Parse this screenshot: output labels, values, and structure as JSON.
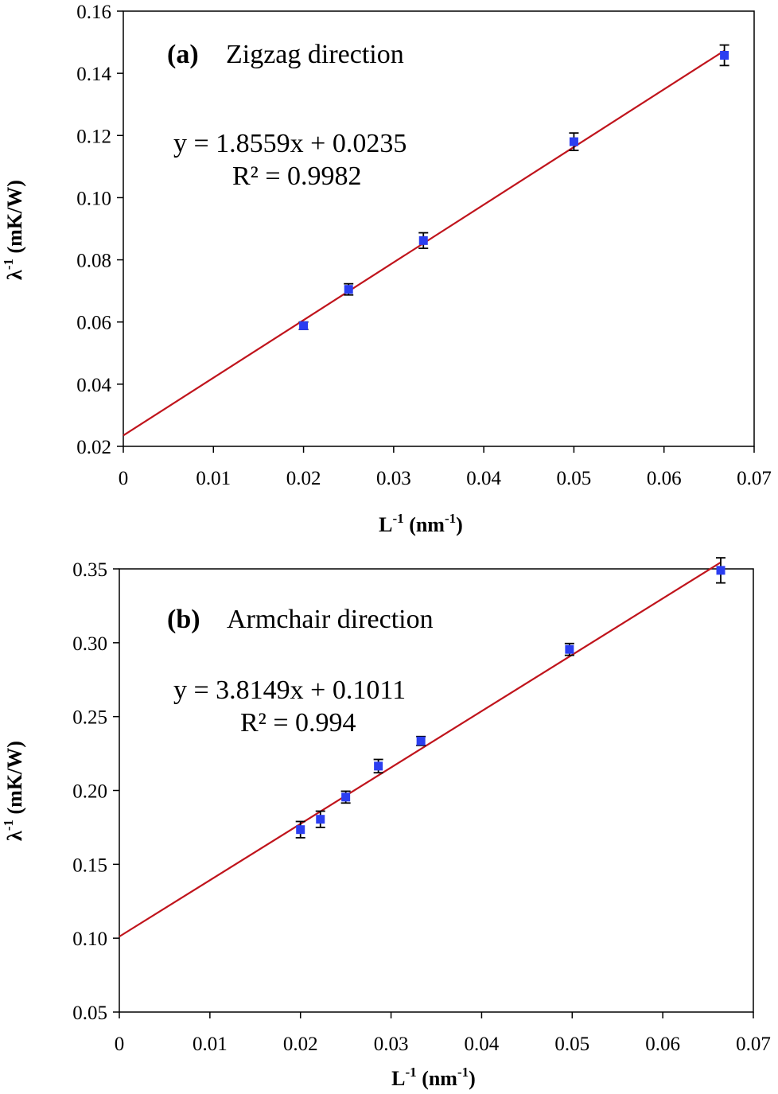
{
  "chart_data": [
    {
      "type": "scatter",
      "panel_label": "(a)",
      "title": "Zigzag direction",
      "xlabel": {
        "base": "L",
        "sup": "-1",
        "unit_open": " (nm",
        "unit_sup": "-1",
        "unit_close": ")"
      },
      "ylabel": {
        "base": "λ",
        "sup": "-1",
        "rest": " (mK/W)"
      },
      "xlim": [
        0,
        0.07
      ],
      "ylim": [
        0.02,
        0.16
      ],
      "xticks": [
        0,
        0.01,
        0.02,
        0.03,
        0.04,
        0.05,
        0.06,
        0.07
      ],
      "xtick_labels": [
        "0",
        "0.01",
        "0.02",
        "0.03",
        "0.04",
        "0.05",
        "0.06",
        "0.07"
      ],
      "yticks": [
        0.02,
        0.04,
        0.06,
        0.08,
        0.1,
        0.12,
        0.14,
        0.16
      ],
      "ytick_labels": [
        "0.02",
        "0.04",
        "0.06",
        "0.08",
        "0.10",
        "0.12",
        "0.14",
        "0.16"
      ],
      "grid": false,
      "series": [
        {
          "x": [
            0.02,
            0.025,
            0.0333,
            0.05,
            0.0667
          ],
          "y": [
            0.0588,
            0.0705,
            0.0862,
            0.118,
            0.1458
          ],
          "yerr": [
            0.0012,
            0.0018,
            0.0025,
            0.0028,
            0.0033
          ],
          "color": "#2b3ef0"
        }
      ],
      "trendline": {
        "slope": 1.8559,
        "intercept": 0.0235,
        "x_range": [
          0,
          0.0667
        ],
        "color": "#c0141c",
        "equation": "y = 1.8559x + 0.0235",
        "r2": "R² = 0.9982"
      }
    },
    {
      "type": "scatter",
      "panel_label": "(b)",
      "title": "Armchair direction",
      "xlabel": {
        "base": "L",
        "sup": "-1",
        "unit_open": " (nm",
        "unit_sup": "-1",
        "unit_close": ")"
      },
      "ylabel": {
        "base": "λ",
        "sup": "-1",
        "rest": " (mK/W)"
      },
      "xlim": [
        0,
        0.07
      ],
      "ylim": [
        0.05,
        0.35
      ],
      "xticks": [
        0,
        0.01,
        0.02,
        0.03,
        0.04,
        0.05,
        0.06,
        0.07
      ],
      "xtick_labels": [
        "0",
        "0.01",
        "0.02",
        "0.03",
        "0.04",
        "0.05",
        "0.06",
        "0.07"
      ],
      "yticks": [
        0.05,
        0.1,
        0.15,
        0.2,
        0.25,
        0.3,
        0.35
      ],
      "ytick_labels": [
        "0.05",
        "0.10",
        "0.15",
        "0.20",
        "0.25",
        "0.30",
        "0.35"
      ],
      "grid": false,
      "series": [
        {
          "x": [
            0.02,
            0.0222,
            0.025,
            0.0286,
            0.0333,
            0.0497,
            0.0664
          ],
          "y": [
            0.1735,
            0.1805,
            0.1955,
            0.2165,
            0.2335,
            0.2955,
            0.349
          ],
          "yerr": [
            0.0055,
            0.0055,
            0.004,
            0.0045,
            0.003,
            0.004,
            0.0085
          ],
          "color": "#2b3ef0"
        }
      ],
      "trendline": {
        "slope": 3.8149,
        "intercept": 0.1011,
        "x_range": [
          0,
          0.0664
        ],
        "color": "#c0141c",
        "equation": "y = 3.8149x + 0.1011",
        "r2": "R² = 0.994"
      }
    }
  ]
}
